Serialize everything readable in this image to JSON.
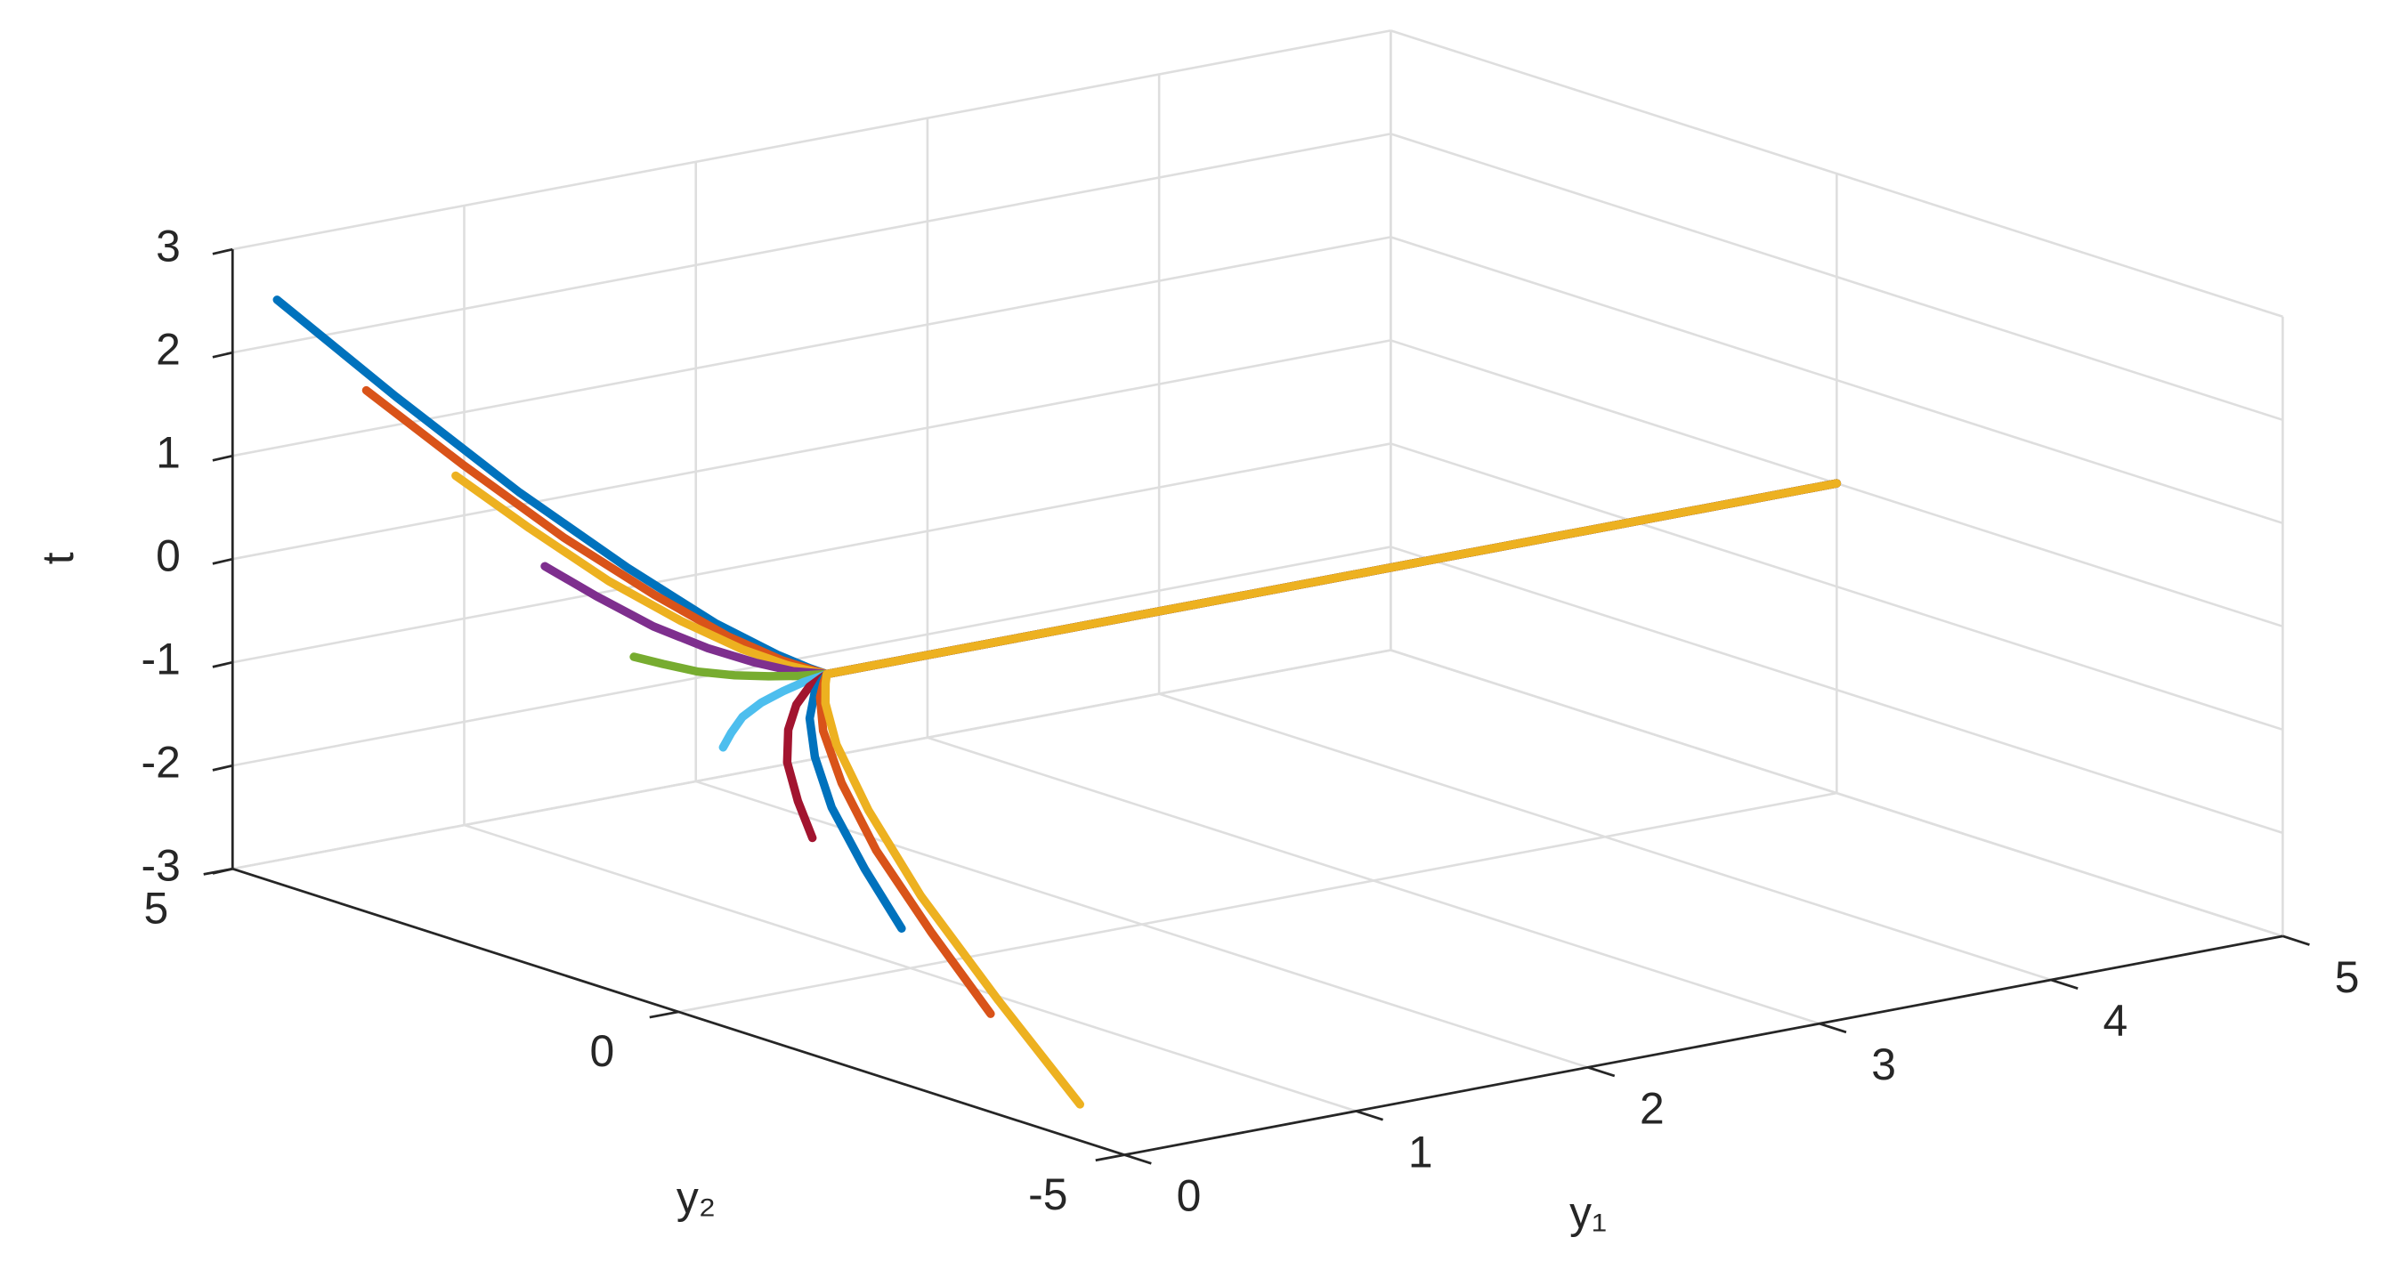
{
  "chart_data": {
    "type": "line3d",
    "xlabel": "y₁",
    "ylabel": "y₂",
    "zlabel": "t",
    "xlim": [
      0,
      5
    ],
    "xticks": [
      0,
      1,
      2,
      3,
      4,
      5
    ],
    "ylim": [
      -5,
      5
    ],
    "yticks": [
      -5,
      0,
      5
    ],
    "zlim": [
      -3,
      3
    ],
    "zticks": [
      -3,
      -2,
      -1,
      0,
      1,
      2,
      3
    ],
    "grid": true,
    "series": [
      {
        "color": "#0072BD",
        "x": [
          0,
          0.08,
          0.18,
          0.3,
          0.42,
          0.53,
          0.6,
          0.64,
          5
        ],
        "y": [
          4.5,
          3.38,
          2.25,
          1.35,
          0.68,
          0.27,
          0.09,
          0,
          0
        ],
        "z": [
          2.65,
          1.99,
          1.33,
          0.8,
          0.4,
          0.16,
          0.05,
          0,
          0
        ]
      },
      {
        "color": "#D95319",
        "x": [
          0,
          0.08,
          0.18,
          0.3,
          0.42,
          0.53,
          0.6,
          0.64,
          5
        ],
        "y": [
          3.5,
          2.63,
          1.75,
          1.05,
          0.53,
          0.21,
          0.07,
          0,
          0
        ],
        "z": [
          2.05,
          1.54,
          1.03,
          0.62,
          0.31,
          0.12,
          0.04,
          0,
          0
        ]
      },
      {
        "color": "#EDB120",
        "x": [
          0,
          0.08,
          0.18,
          0.3,
          0.42,
          0.53,
          0.6,
          0.64,
          5
        ],
        "y": [
          2.5,
          1.88,
          1.25,
          0.75,
          0.38,
          0.15,
          0.05,
          0,
          0
        ],
        "z": [
          1.5,
          1.13,
          0.75,
          0.45,
          0.23,
          0.09,
          0.03,
          0,
          0
        ]
      },
      {
        "color": "#7E2F8E",
        "x": [
          0,
          0.08,
          0.18,
          0.3,
          0.42,
          0.53,
          0.6,
          0.64,
          5
        ],
        "y": [
          1.5,
          1.13,
          0.75,
          0.45,
          0.23,
          0.09,
          0.03,
          0,
          0
        ],
        "z": [
          0.9,
          0.68,
          0.45,
          0.27,
          0.14,
          0.05,
          0.02,
          0,
          0
        ]
      },
      {
        "color": "#77AC30",
        "x": [
          0,
          0.08,
          0.18,
          0.3,
          0.42,
          0.53,
          0.6,
          0.64,
          5
        ],
        "y": [
          0.5,
          0.38,
          0.25,
          0.15,
          0.08,
          0.03,
          0.01,
          0,
          0
        ],
        "z": [
          0.3,
          0.23,
          0.15,
          0.09,
          0.05,
          0.02,
          0.01,
          0,
          0
        ]
      },
      {
        "color": "#4DBEEE",
        "x": [
          0,
          0.08,
          0.18,
          0.3,
          0.42,
          0.53,
          0.6,
          0.64,
          5
        ],
        "y": [
          -0.5,
          -0.38,
          -0.25,
          -0.15,
          -0.08,
          -0.03,
          -0.01,
          0,
          0
        ],
        "z": [
          -0.3,
          -0.23,
          -0.15,
          -0.09,
          -0.05,
          -0.02,
          -0.01,
          0,
          0
        ]
      },
      {
        "color": "#A2142F",
        "x": [
          0,
          0.08,
          0.18,
          0.3,
          0.42,
          0.53,
          0.6,
          0.64,
          5
        ],
        "y": [
          -1.5,
          -1.13,
          -0.75,
          -0.45,
          -0.23,
          -0.09,
          -0.03,
          0,
          0
        ],
        "z": [
          -0.9,
          -0.68,
          -0.45,
          -0.27,
          -0.14,
          -0.05,
          -0.02,
          0,
          0
        ]
      },
      {
        "color": "#0072BD",
        "x": [
          0,
          0.08,
          0.18,
          0.3,
          0.42,
          0.53,
          0.6,
          0.64,
          5
        ],
        "y": [
          -2.5,
          -1.88,
          -1.25,
          -0.75,
          -0.38,
          -0.15,
          -0.05,
          0,
          0
        ],
        "z": [
          -1.5,
          -1.13,
          -0.75,
          -0.45,
          -0.23,
          -0.09,
          -0.03,
          0,
          0
        ]
      },
      {
        "color": "#D95319",
        "x": [
          0,
          0.08,
          0.18,
          0.3,
          0.42,
          0.53,
          0.6,
          0.64,
          5
        ],
        "y": [
          -3.5,
          -2.63,
          -1.75,
          -1.05,
          -0.53,
          -0.21,
          -0.07,
          0,
          0
        ],
        "z": [
          -2.05,
          -1.54,
          -1.03,
          -0.62,
          -0.31,
          -0.12,
          -0.04,
          0,
          0
        ]
      },
      {
        "color": "#EDB120",
        "x": [
          0,
          0.08,
          0.18,
          0.3,
          0.42,
          0.53,
          0.6,
          0.64,
          5
        ],
        "y": [
          -4.5,
          -3.38,
          -2.25,
          -1.35,
          -0.68,
          -0.27,
          -0.09,
          0,
          0
        ],
        "z": [
          -2.65,
          -1.99,
          -1.33,
          -0.8,
          -0.4,
          -0.16,
          -0.05,
          0,
          0
        ]
      }
    ]
  }
}
